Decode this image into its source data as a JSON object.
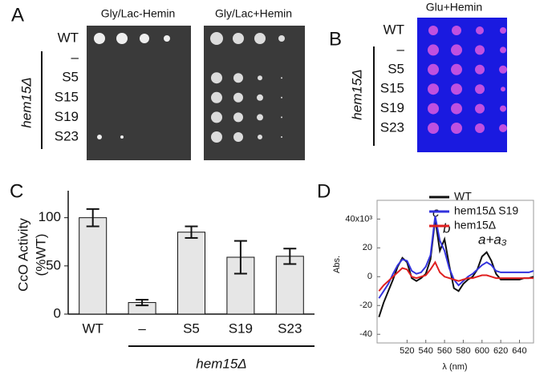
{
  "panel_a": {
    "label": "A",
    "columns": [
      "Gly/Lac-Hemin",
      "Gly/Lac+Hemin"
    ],
    "rows": [
      "WT",
      "–",
      "S5",
      "S15",
      "S19",
      "S23"
    ],
    "group_label": "hem15Δ"
  },
  "panel_b": {
    "label": "B",
    "column": "Glu+Hemin",
    "rows": [
      "WT",
      "–",
      "S5",
      "S15",
      "S19",
      "S23"
    ],
    "group_label": "hem15Δ"
  },
  "chart_data": [
    {
      "type": "bar",
      "panel_label": "C",
      "y_label": [
        "CcO Activity",
        "(%WT)"
      ],
      "categories": [
        "WT",
        "–",
        "S5",
        "S19",
        "S23"
      ],
      "values": [
        100,
        12,
        85,
        59,
        60
      ],
      "errors": [
        9,
        3,
        6,
        17,
        8
      ],
      "color": "#e6e6e6",
      "ylim": [
        0,
        128
      ],
      "yticks": [
        0,
        50,
        100
      ],
      "group_label": "hem15Δ"
    },
    {
      "type": "line",
      "panel_label": "D",
      "y_label": "Abs.",
      "x_label": "λ (nm)",
      "x": [
        490,
        495,
        500,
        505,
        510,
        515,
        520,
        525,
        530,
        535,
        540,
        545,
        550,
        555,
        560,
        565,
        570,
        575,
        580,
        585,
        590,
        595,
        600,
        605,
        610,
        615,
        620,
        625,
        630,
        635,
        640,
        645,
        650,
        655
      ],
      "series": [
        {
          "name": "WT",
          "color": "#111111",
          "values": [
            -28,
            -18,
            -10,
            -2,
            7,
            13,
            10,
            -1,
            -3,
            -1,
            2,
            12,
            40,
            18,
            26,
            8,
            -8,
            -10,
            -5,
            -2,
            0,
            5,
            14,
            17,
            11,
            2,
            -2,
            -2,
            -2,
            -2,
            -2,
            -1,
            -1,
            0
          ]
        },
        {
          "name": "hem15Δ S19",
          "color": "#3333dd",
          "values": [
            -15,
            -10,
            -5,
            2,
            8,
            12,
            11,
            4,
            2,
            3,
            7,
            15,
            42,
            25,
            18,
            6,
            -2,
            -6,
            -3,
            0,
            2,
            5,
            8,
            10,
            8,
            4,
            3,
            3,
            3,
            3,
            3,
            3,
            3,
            4
          ]
        },
        {
          "name": "hem15Δ",
          "color": "#e02020",
          "values": [
            -10,
            -6,
            -3,
            0,
            3,
            6,
            5,
            0,
            -1,
            0,
            1,
            5,
            10,
            3,
            0,
            -1,
            -2,
            -3,
            -2,
            -1,
            -1,
            0,
            1,
            1,
            0,
            -1,
            -1,
            -1,
            -1,
            -1,
            -1,
            -1,
            -1,
            -1
          ]
        }
      ],
      "xlim": [
        488,
        655
      ],
      "ylim": [
        -46,
        53
      ],
      "xticks": [
        520,
        540,
        560,
        580,
        600,
        620,
        640
      ],
      "yticks": [
        -40,
        -20,
        0,
        20,
        {
          "value": 40,
          "label": "40x10³"
        }
      ],
      "annotations": [
        "c",
        "b",
        "a+a₃"
      ]
    }
  ]
}
